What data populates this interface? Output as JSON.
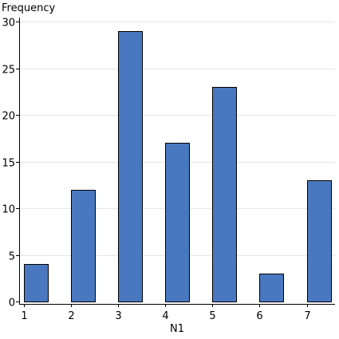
{
  "chart_data": {
    "type": "bar",
    "categories": [
      "1",
      "2",
      "3",
      "4",
      "5",
      "6",
      "7"
    ],
    "x": [
      1,
      2,
      3,
      4,
      5,
      6,
      7
    ],
    "values": [
      4,
      12,
      29,
      17,
      23,
      3,
      13
    ],
    "xlabel": "N1",
    "ylabel": "Frequency",
    "xlim": [
      0.9,
      7.6
    ],
    "ylim": [
      0,
      30
    ],
    "yticks": [
      0,
      5,
      10,
      15,
      20,
      25,
      30
    ],
    "xticks": [
      1,
      2,
      3,
      4,
      5,
      6,
      7
    ],
    "grid": true,
    "bar_color": "#4a78c0",
    "bar_edge_color": "#000000"
  }
}
